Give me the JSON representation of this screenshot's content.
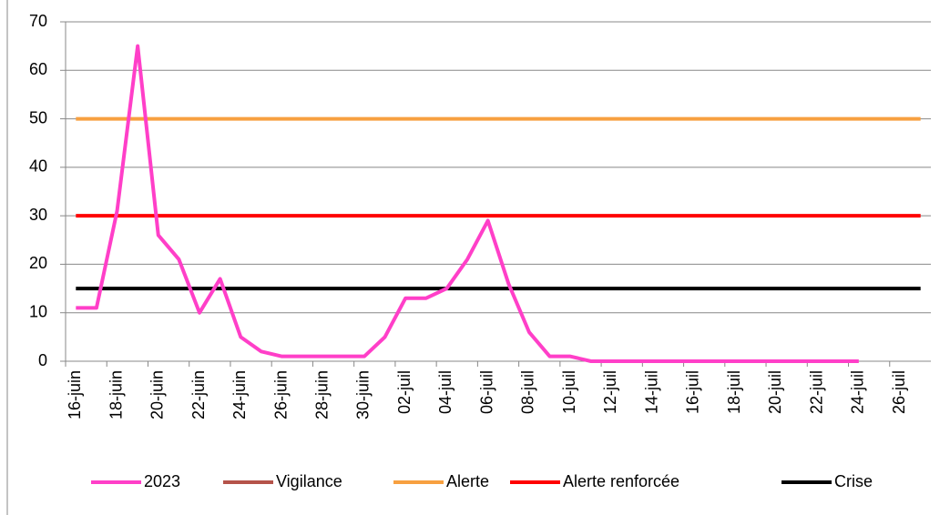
{
  "chart_data": {
    "type": "line",
    "categories": [
      "16-juin",
      null,
      "18-juin",
      null,
      "20-juin",
      null,
      "22-juin",
      null,
      "24-juin",
      null,
      "26-juin",
      null,
      "28-juin",
      null,
      "30-juin",
      null,
      "02-juil",
      null,
      "04-juil",
      null,
      "06-juil",
      null,
      "08-juil",
      null,
      "10-juil",
      null,
      "12-juil",
      null,
      "14-juil",
      null,
      "16-juil",
      null,
      "18-juil",
      null,
      "20-juil",
      null,
      "22-juil",
      null,
      "24-juil",
      null,
      "26-juil",
      null
    ],
    "series": [
      {
        "name": "2023",
        "color": "#ff3fc8",
        "values": [
          11,
          11,
          31,
          65,
          26,
          21,
          10,
          17,
          5,
          2,
          1,
          1,
          1,
          1,
          1,
          5,
          13,
          13,
          15,
          21,
          29,
          16,
          6,
          1,
          1,
          0,
          0,
          0,
          0,
          0,
          0,
          0,
          0,
          0,
          0,
          0,
          0,
          0,
          0,
          null,
          null,
          null
        ]
      },
      {
        "name": "Vigilance",
        "color": "#b5534a",
        "values": [
          null,
          null,
          null,
          null,
          null,
          null,
          null,
          null,
          null,
          null,
          null,
          null,
          null,
          null,
          null,
          null,
          null,
          null,
          null,
          null,
          null,
          null,
          null,
          null,
          null,
          null,
          null,
          null,
          null,
          null,
          null,
          null,
          null,
          null,
          null,
          null,
          null,
          null,
          null,
          null,
          null,
          null
        ]
      },
      {
        "name": "Alerte",
        "color": "#f7a040",
        "values": [
          50,
          50,
          50,
          50,
          50,
          50,
          50,
          50,
          50,
          50,
          50,
          50,
          50,
          50,
          50,
          50,
          50,
          50,
          50,
          50,
          50,
          50,
          50,
          50,
          50,
          50,
          50,
          50,
          50,
          50,
          50,
          50,
          50,
          50,
          50,
          50,
          50,
          50,
          50,
          50,
          50,
          50
        ]
      },
      {
        "name": "Alerte renforcée",
        "color": "#ff0000",
        "values": [
          30,
          30,
          30,
          30,
          30,
          30,
          30,
          30,
          30,
          30,
          30,
          30,
          30,
          30,
          30,
          30,
          30,
          30,
          30,
          30,
          30,
          30,
          30,
          30,
          30,
          30,
          30,
          30,
          30,
          30,
          30,
          30,
          30,
          30,
          30,
          30,
          30,
          30,
          30,
          30,
          30,
          30
        ]
      },
      {
        "name": "Crise",
        "color": "#000000",
        "values": [
          15,
          15,
          15,
          15,
          15,
          15,
          15,
          15,
          15,
          15,
          15,
          15,
          15,
          15,
          15,
          15,
          15,
          15,
          15,
          15,
          15,
          15,
          15,
          15,
          15,
          15,
          15,
          15,
          15,
          15,
          15,
          15,
          15,
          15,
          15,
          15,
          15,
          15,
          15,
          15,
          15,
          15
        ]
      }
    ],
    "ylim": [
      0,
      70
    ],
    "yticks": [
      0,
      10,
      20,
      30,
      40,
      50,
      60,
      70
    ],
    "grid": true,
    "legend": "bottom"
  }
}
